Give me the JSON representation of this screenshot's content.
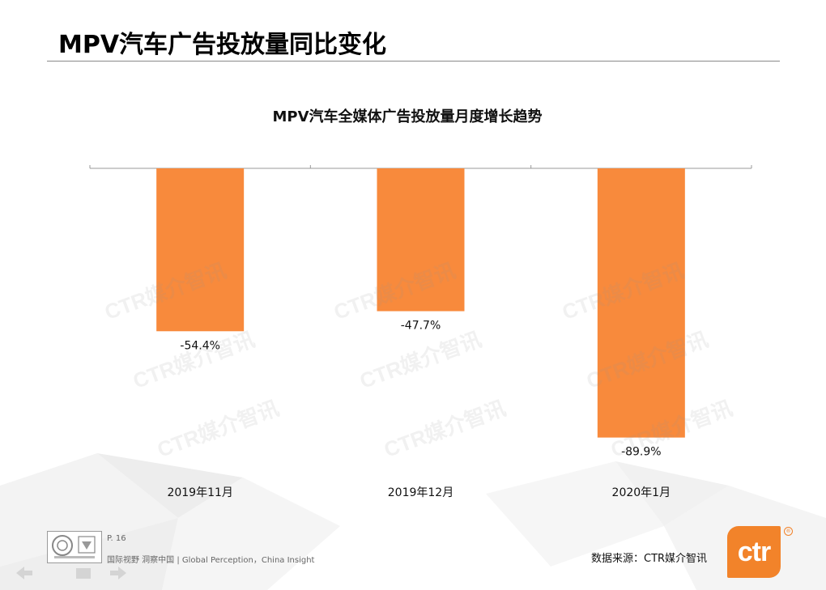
{
  "page": {
    "title": "MPV汽车广告投放量同比变化",
    "page_number": "P. 16",
    "slogan": "国际视野  洞察中国 |   Global  Perception，China  Insight",
    "source": "数据来源：CTR媒介智讯",
    "logo_text": "ctr",
    "reg_mark": "®",
    "watermark": "CTR媒介智讯",
    "accent_color": "#f88a3c"
  },
  "chart_data": {
    "type": "bar",
    "title": "MPV汽车全媒体广告投放量月度增长趋势",
    "categories": [
      "2019年11月",
      "2019年12月",
      "2020年1月"
    ],
    "values": [
      -54.4,
      -47.7,
      -89.9
    ],
    "value_labels": [
      "-54.4%",
      "-47.7%",
      "-89.9%"
    ],
    "ylim": [
      -100,
      0
    ],
    "xlabel": "",
    "ylabel": "",
    "grid": false,
    "bar_color": "#f88a3c"
  }
}
